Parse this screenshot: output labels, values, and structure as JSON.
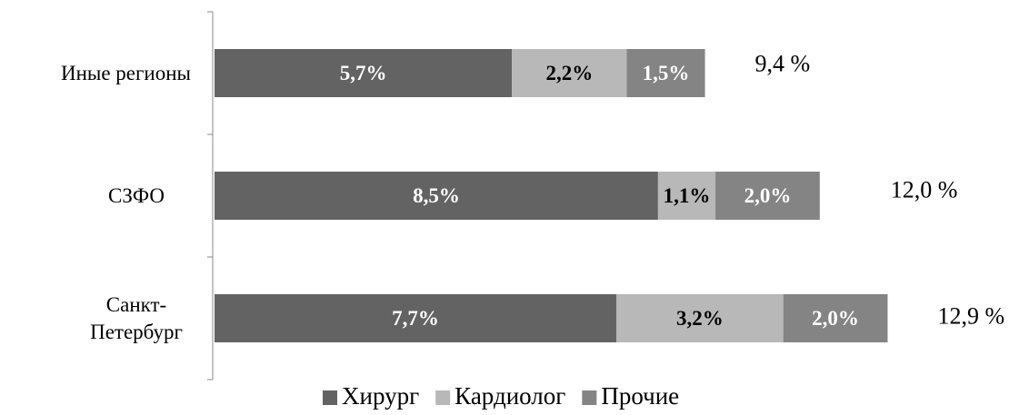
{
  "chart_data": {
    "type": "stacked_barh",
    "categories": [
      "Иные регионы",
      "СЗФО",
      "Санкт-Петербург"
    ],
    "series": [
      {
        "name": "Хирург",
        "color": "#636363",
        "label_color": "#ffffff",
        "values": [
          5.7,
          8.5,
          7.7
        ],
        "value_labels": [
          "5,7%",
          "8,5%",
          "7,7%"
        ]
      },
      {
        "name": "Кардиолог",
        "color": "#b8b8b8",
        "label_color": "#000000",
        "values": [
          2.2,
          1.1,
          3.2
        ],
        "value_labels": [
          "2,2%",
          "1,1%",
          "3,2%"
        ]
      },
      {
        "name": "Прочие",
        "color": "#848484",
        "label_color": "#ffffff",
        "values": [
          1.5,
          2.0,
          2.0
        ],
        "value_labels": [
          "1,5%",
          "2,0%",
          "2,0%"
        ]
      }
    ],
    "totals": [
      9.4,
      12.0,
      12.9
    ],
    "total_labels": [
      "9,4 %",
      "12,0 %",
      "12,9 %"
    ],
    "legend": "bottom"
  }
}
